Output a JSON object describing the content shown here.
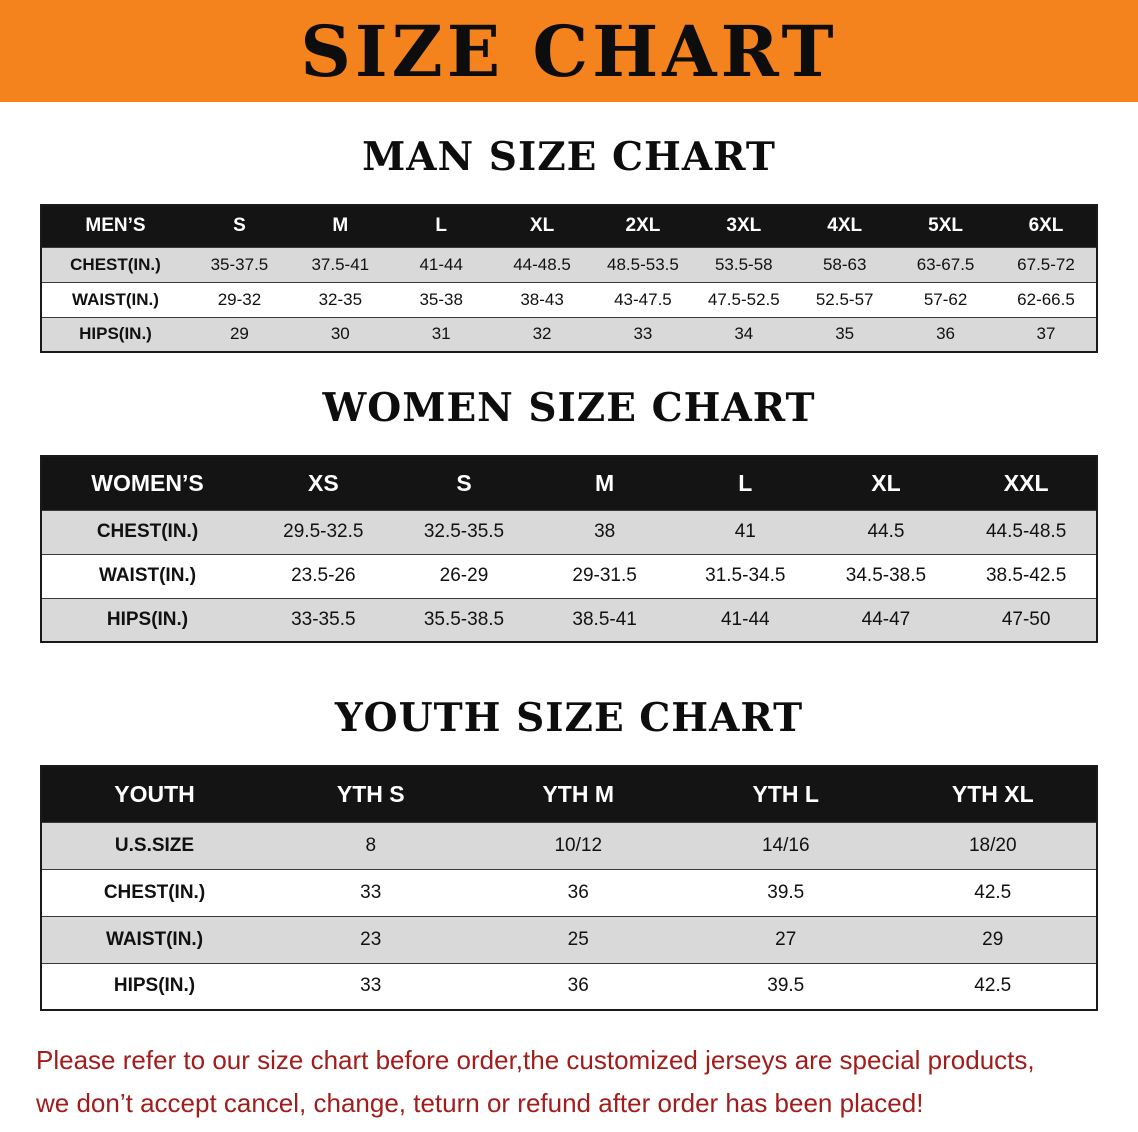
{
  "banner": {
    "title": "SIZE CHART",
    "bg_color": "#f5831d"
  },
  "sections": [
    {
      "heading": "MAN SIZE CHART",
      "table": {
        "header": [
          "MEN’S",
          "S",
          "M",
          "L",
          "XL",
          "2XL",
          "3XL",
          "4XL",
          "5XL",
          "6XL"
        ],
        "rows": [
          [
            "CHEST(IN.)",
            "35-37.5",
            "37.5-41",
            "41-44",
            "44-48.5",
            "48.5-53.5",
            "53.5-58",
            "58-63",
            "63-67.5",
            "67.5-72"
          ],
          [
            "WAIST(IN.)",
            "29-32",
            "32-35",
            "35-38",
            "38-43",
            "43-47.5",
            "47.5-52.5",
            "52.5-57",
            "57-62",
            "62-66.5"
          ],
          [
            "HIPS(IN.)",
            "29",
            "30",
            "31",
            "32",
            "33",
            "34",
            "35",
            "36",
            "37"
          ]
        ]
      }
    },
    {
      "heading": "WOMEN SIZE CHART",
      "table": {
        "header": [
          "WOMEN’S",
          "XS",
          "S",
          "M",
          "L",
          "XL",
          "XXL"
        ],
        "rows": [
          [
            "CHEST(IN.)",
            "29.5-32.5",
            "32.5-35.5",
            "38",
            "41",
            "44.5",
            "44.5-48.5"
          ],
          [
            "WAIST(IN.)",
            "23.5-26",
            "26-29",
            "29-31.5",
            "31.5-34.5",
            "34.5-38.5",
            "38.5-42.5"
          ],
          [
            "HIPS(IN.)",
            "33-35.5",
            "35.5-38.5",
            "38.5-41",
            "41-44",
            "44-47",
            "47-50"
          ]
        ]
      }
    },
    {
      "heading": "YOUTH SIZE CHART",
      "table": {
        "header": [
          "YOUTH",
          "YTH S",
          "YTH M",
          "YTH L",
          "YTH XL"
        ],
        "rows": [
          [
            "U.S.SIZE",
            "8",
            "10/12",
            "14/16",
            "18/20"
          ],
          [
            "CHEST(IN.)",
            "33",
            "36",
            "39.5",
            "42.5"
          ],
          [
            "WAIST(IN.)",
            "23",
            "25",
            "27",
            "29"
          ],
          [
            "HIPS(IN.)",
            "33",
            "36",
            "39.5",
            "42.5"
          ]
        ]
      }
    }
  ],
  "footer": {
    "line1": "Please refer to our size chart before order,the customized jerseys are special products,",
    "line2": "we don’t accept cancel, change, teturn or refund after order has been placed!",
    "text_color": "#a31c1c"
  }
}
